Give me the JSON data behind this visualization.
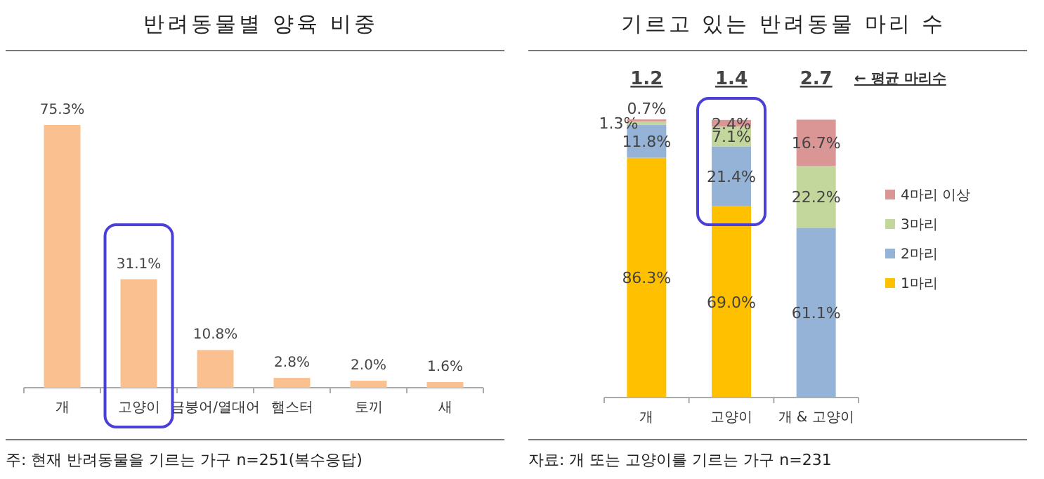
{
  "chart_data": [
    {
      "type": "bar",
      "title": "반려동물별 양육 비중",
      "categories": [
        "개",
        "고양이",
        "금붕어/열대어",
        "햄스터",
        "토끼",
        "새"
      ],
      "values": [
        75.3,
        31.1,
        10.8,
        2.8,
        2.0,
        1.6
      ],
      "color": "#fac090",
      "value_labels": [
        "75.3%",
        "31.1%",
        "10.8%",
        "2.8%",
        "2.0%",
        "1.6%"
      ],
      "annotations": [
        "주: 현재 반려동물을 기르는 가구 n=251(복수응답)"
      ]
    },
    {
      "type": "bar",
      "title": "기르고 있는 반려동물 마리 수",
      "categories": [
        "개",
        "고양이",
        "개 & 고양이"
      ],
      "stacked": true,
      "legend": "right",
      "series": [
        {
          "name": "1마리",
          "color": "#ffc000",
          "values": [
            86.3,
            69.0,
            null
          ],
          "value_labels": [
            "86.3%",
            "69.0%",
            null
          ]
        },
        {
          "name": "2마리",
          "color": "#95b3d7",
          "values": [
            11.8,
            21.4,
            61.1
          ],
          "value_labels": [
            "11.8%",
            "21.4%",
            "61.1%"
          ]
        },
        {
          "name": "3마리",
          "color": "#c3d69b",
          "values": [
            1.3,
            7.1,
            22.2
          ],
          "value_labels": [
            "1.3%",
            "7.1%",
            "22.2%"
          ]
        },
        {
          "name": "4마리 이상",
          "color": "#d99694",
          "values": [
            0.7,
            2.4,
            16.7
          ],
          "value_labels": [
            "0.7%",
            "2.4%",
            "16.7%"
          ]
        }
      ],
      "annotations": [
        "자료: 개 또는 고양이를 기르는 가구 n=231",
        "1.2",
        "1.4",
        "2.7",
        "← 평균 마리수"
      ]
    }
  ]
}
